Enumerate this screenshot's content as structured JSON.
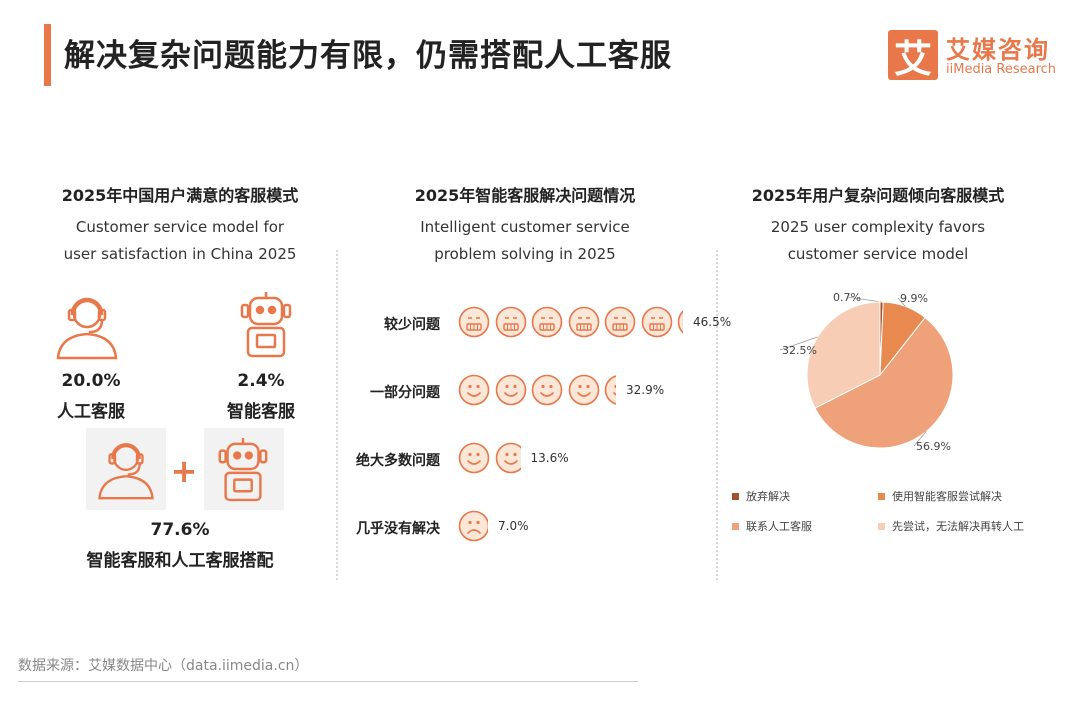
{
  "header": {
    "title": "解决复杂问题能力有限，仍需搭配人工客服",
    "logo_glyph": "艾",
    "logo_cn": "艾媒咨询",
    "logo_en": "iiMedia Research",
    "accent_color": "#e8774a"
  },
  "panels": [
    {
      "title": "2025年中国用户满意的客服模式",
      "subtitle_line1": "Customer service model for",
      "subtitle_line2": "user satisfaction in China 2025"
    },
    {
      "title": "2025年智能客服解决问题情况",
      "subtitle_line1": "Intelligent customer service",
      "subtitle_line2": "problem solving in 2025"
    },
    {
      "title": "2025年用户复杂问题倾向客服模式",
      "subtitle_line1": "2025 user complexity favors",
      "subtitle_line2": "customer service model"
    }
  ],
  "satisfaction": {
    "human_pct": "20.0%",
    "human_label": "人工客服",
    "ai_pct": "2.4%",
    "ai_label": "智能客服",
    "combo_pct": "77.6%",
    "combo_label": "智能客服和人工客服搭配",
    "plus_glyph": "+",
    "icon_names": [
      "headset-agent-icon",
      "robot-icon"
    ]
  },
  "chart_data": [
    {
      "type": "pictogram",
      "title": "2025年智能客服解决问题情况",
      "categories": [
        "较少问题",
        "一部分问题",
        "绝大多数问题",
        "几乎没有解决"
      ],
      "values": [
        46.5,
        32.9,
        13.6,
        7.0
      ],
      "labels": [
        "46.5%",
        "32.9%",
        "13.6%",
        "7.0%"
      ],
      "icon_per": 7.5,
      "face_types": [
        "neutral",
        "smile",
        "smile",
        "frown"
      ],
      "unit": "%"
    },
    {
      "type": "pie",
      "title": "2025年用户复杂问题倾向客服模式",
      "categories": [
        "放弃解决",
        "使用智能客服尝试解决",
        "联系人工客服",
        "先尝试，无法解决再转人工"
      ],
      "values": [
        0.7,
        9.9,
        56.9,
        32.5
      ],
      "labels": [
        "0.7%",
        "9.9%",
        "56.9%",
        "32.5%"
      ],
      "colors": [
        "#a0522d",
        "#e8894f",
        "#efa27a",
        "#f7cdb5"
      ],
      "legend_position": "bottom"
    }
  ],
  "footer": {
    "source": "数据来源：艾媒数据中心（data.iimedia.cn）"
  }
}
